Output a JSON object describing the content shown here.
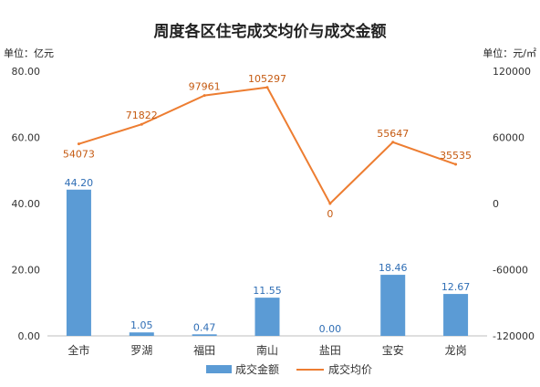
{
  "chart_data": {
    "type": "bar",
    "title": "周度各区住宅成交均价与成交金额",
    "left_axis_unit": "单位：亿元",
    "right_axis_unit": "单位：元/㎡",
    "categories": [
      "全市",
      "罗湖",
      "福田",
      "南山",
      "盐田",
      "宝安",
      "龙岗"
    ],
    "series": [
      {
        "name": "成交金额",
        "type": "bar",
        "axis": "left",
        "color": "#5b9bd5",
        "values": [
          44.2,
          1.05,
          0.47,
          11.55,
          0.0,
          18.46,
          12.67
        ],
        "labels": [
          "44.20",
          "1.05",
          "0.47",
          "11.55",
          "0.00",
          "18.46",
          "12.67"
        ]
      },
      {
        "name": "成交均价",
        "type": "line",
        "axis": "right",
        "color": "#ed7d31",
        "values": [
          54073,
          71822,
          97961,
          105297,
          0,
          55647,
          35535
        ],
        "labels": [
          "54073",
          "71822",
          "97961",
          "105297",
          "0",
          "55647",
          "35535"
        ]
      }
    ],
    "left_axis": {
      "ylim": [
        0,
        80
      ],
      "ticks": [
        0,
        20,
        40,
        60,
        80
      ],
      "tick_labels": [
        "0.00",
        "20.00",
        "40.00",
        "60.00",
        "80.00"
      ]
    },
    "right_axis": {
      "ylim": [
        -120000,
        120000
      ],
      "ticks": [
        -120000,
        -60000,
        0,
        60000,
        120000
      ],
      "tick_labels": [
        "-120000",
        "-60000",
        "0",
        "60000",
        "120000"
      ]
    },
    "grid": false,
    "legend": "bottom"
  }
}
